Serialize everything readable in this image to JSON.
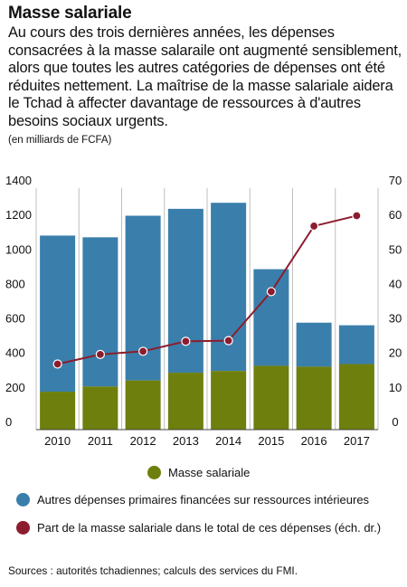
{
  "header": {
    "title": "Masse salariale",
    "subtitle": "Au cours des trois dernières années, les dépenses consacrées à la masse salaraile ont augmenté sensiblement, alors que toutes les autres catégories de dépenses ont été réduites nettement. La maîtrise de la masse salariale aidera le Tchad à affecter davantage de ressources à d'autres besoins sociaux urgents.",
    "unit": "(en milliards de FCFA)"
  },
  "colors": {
    "wage_bill": "#6e7f0d",
    "other_spending": "#3a7fab",
    "share_line": "#8c1d2e",
    "grid": "#bfbfbf"
  },
  "chart_data": {
    "type": "bar",
    "stacked": true,
    "title": "",
    "xlabel": "",
    "ylabel": "",
    "categories": [
      "2010",
      "2011",
      "2012",
      "2013",
      "2014",
      "2015",
      "2016",
      "2017"
    ],
    "series": [
      {
        "name": "Masse salariale",
        "type": "bar",
        "axis": "left",
        "values": [
          220,
          250,
          285,
          330,
          340,
          370,
          365,
          380
        ]
      },
      {
        "name": "Autres dépenses primaires financées sur ressources intérieures",
        "type": "bar",
        "axis": "left",
        "values": [
          905,
          865,
          955,
          950,
          975,
          560,
          255,
          225
        ]
      },
      {
        "name": "Part de la masse salariale dans le total de ces dépenses (éch. dr.)",
        "type": "line",
        "axis": "right",
        "values": [
          19.0,
          21.8,
          22.7,
          25.6,
          25.8,
          40.0,
          59.0,
          62.0
        ]
      }
    ],
    "ylim": [
      0,
      1400
    ],
    "y2lim": [
      0,
      70
    ],
    "yticks": [
      "0",
      "200",
      "400",
      "600",
      "800",
      "1000",
      "1200",
      "1400"
    ],
    "y2ticks": [
      "0",
      "10",
      "20",
      "30",
      "40",
      "50",
      "60",
      "70"
    ],
    "grid": "vertical",
    "legend": "bottom"
  },
  "source": "Sources : autorités tchadiennes; calculs des services du FMI."
}
